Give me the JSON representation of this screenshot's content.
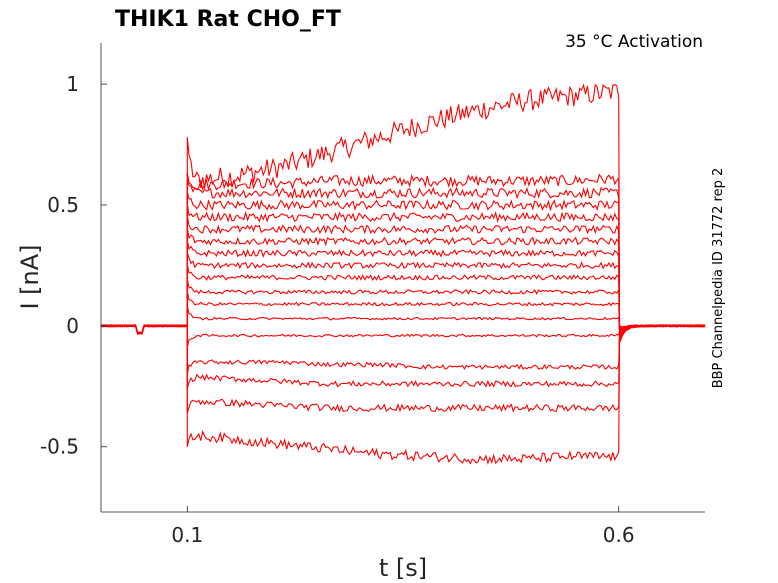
{
  "chart_data": {
    "type": "line",
    "title": "THIK1  Rat  CHO_FT",
    "annotation": "35 °C  Activation",
    "side_note": "BBP Channelpedia ID 31772 rep 2",
    "xlabel": "t [s]",
    "ylabel": "I [nA]",
    "xlim": [
      0.0,
      0.7
    ],
    "ylim": [
      -0.77,
      1.17
    ],
    "x_ticks": [
      {
        "value": 0.1,
        "label": "0.1"
      },
      {
        "value": 0.6,
        "label": "0.6"
      }
    ],
    "y_ticks": [
      {
        "value": 1.0,
        "label": "1"
      },
      {
        "value": 0.5,
        "label": "0.5"
      },
      {
        "value": 0.0,
        "label": "0"
      },
      {
        "value": -0.5,
        "label": "-0.5"
      }
    ],
    "step_start": 0.1,
    "step_end": 0.6,
    "grid": false,
    "line_color": "#ff0000",
    "series": [
      {
        "values": [
          0.6,
          0.62,
          0.66,
          0.72,
          0.78,
          0.84,
          0.89,
          0.93,
          0.95,
          0.97
        ]
      },
      {
        "values": [
          0.58,
          0.59,
          0.59,
          0.6,
          0.6,
          0.6,
          0.6,
          0.6,
          0.6,
          0.61
        ]
      },
      {
        "values": [
          0.55,
          0.55,
          0.55,
          0.55,
          0.55,
          0.55,
          0.55,
          0.55,
          0.55,
          0.55
        ]
      },
      {
        "values": [
          0.5,
          0.5,
          0.5,
          0.5,
          0.5,
          0.5,
          0.5,
          0.5,
          0.5,
          0.5
        ]
      },
      {
        "values": [
          0.45,
          0.45,
          0.45,
          0.45,
          0.45,
          0.45,
          0.45,
          0.45,
          0.45,
          0.45
        ]
      },
      {
        "values": [
          0.4,
          0.4,
          0.4,
          0.4,
          0.4,
          0.4,
          0.4,
          0.4,
          0.4,
          0.4
        ]
      },
      {
        "values": [
          0.35,
          0.35,
          0.35,
          0.35,
          0.35,
          0.35,
          0.35,
          0.35,
          0.35,
          0.35
        ]
      },
      {
        "values": [
          0.3,
          0.3,
          0.3,
          0.3,
          0.3,
          0.3,
          0.3,
          0.3,
          0.3,
          0.3
        ]
      },
      {
        "values": [
          0.25,
          0.25,
          0.25,
          0.25,
          0.25,
          0.25,
          0.25,
          0.25,
          0.25,
          0.25
        ]
      },
      {
        "values": [
          0.2,
          0.2,
          0.2,
          0.2,
          0.2,
          0.2,
          0.2,
          0.2,
          0.2,
          0.2
        ]
      },
      {
        "values": [
          0.14,
          0.14,
          0.14,
          0.14,
          0.14,
          0.14,
          0.14,
          0.14,
          0.14,
          0.14
        ]
      },
      {
        "values": [
          0.09,
          0.09,
          0.09,
          0.09,
          0.09,
          0.09,
          0.09,
          0.09,
          0.09,
          0.09
        ]
      },
      {
        "values": [
          0.03,
          0.03,
          0.03,
          0.03,
          0.03,
          0.03,
          0.03,
          0.03,
          0.03,
          0.03
        ]
      },
      {
        "values": [
          -0.04,
          -0.04,
          -0.04,
          -0.04,
          -0.04,
          -0.04,
          -0.04,
          -0.04,
          -0.04,
          -0.04
        ]
      },
      {
        "values": [
          -0.15,
          -0.15,
          -0.15,
          -0.16,
          -0.16,
          -0.17,
          -0.17,
          -0.17,
          -0.17,
          -0.17
        ]
      },
      {
        "values": [
          -0.21,
          -0.22,
          -0.23,
          -0.24,
          -0.24,
          -0.24,
          -0.24,
          -0.24,
          -0.24,
          -0.24
        ]
      },
      {
        "values": [
          -0.31,
          -0.32,
          -0.33,
          -0.34,
          -0.34,
          -0.34,
          -0.34,
          -0.34,
          -0.34,
          -0.34
        ]
      },
      {
        "values": [
          -0.45,
          -0.47,
          -0.49,
          -0.51,
          -0.53,
          -0.54,
          -0.55,
          -0.55,
          -0.54,
          -0.54
        ]
      }
    ]
  }
}
